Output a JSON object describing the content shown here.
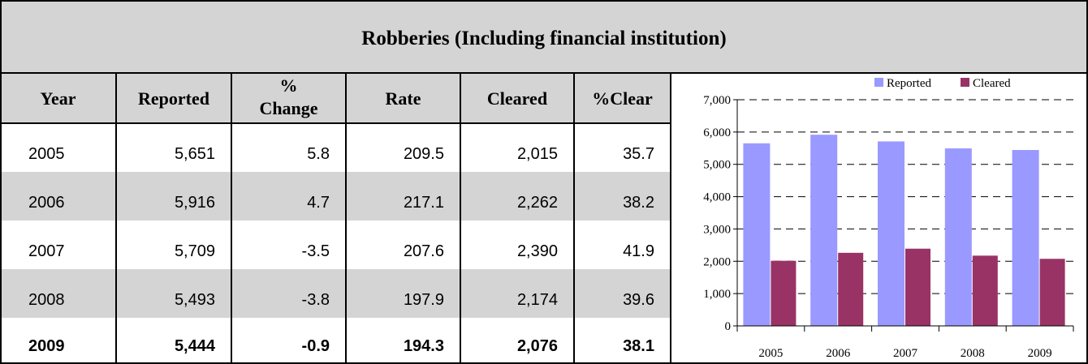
{
  "table": {
    "title": "Robberies (Including financial institution)",
    "header": [
      "Year",
      "Reported",
      [
        "%",
        "Change"
      ],
      "Rate",
      "Cleared",
      "%Clear"
    ],
    "rows": [
      [
        "2005",
        "5,651",
        "5.8",
        "209.5",
        "2,015",
        "35.7"
      ],
      [
        "2006",
        "5,916",
        "4.7",
        "217.1",
        "2,262",
        "38.2"
      ],
      [
        "2007",
        "5,709",
        "-3.5",
        "207.6",
        "2,390",
        "41.9"
      ],
      [
        "2008",
        "5,493",
        "-3.8",
        "197.9",
        "2,174",
        "39.6"
      ],
      [
        "2009",
        "5,444",
        "-0.9",
        "194.3",
        "2,076",
        "38.1"
      ]
    ]
  },
  "chart_data": {
    "type": "bar",
    "categories": [
      "2005",
      "2006",
      "2007",
      "2008",
      "2009"
    ],
    "series": [
      {
        "name": "Reported",
        "color": "#9999ff",
        "values": [
          5651,
          5916,
          5709,
          5493,
          5444
        ]
      },
      {
        "name": "Cleared",
        "color": "#993366",
        "values": [
          2015,
          2262,
          2390,
          2174,
          2076
        ]
      }
    ],
    "ylim": [
      0,
      7000
    ],
    "yticks": [
      0,
      {
        "value": 1000,
        "label": "1,000"
      },
      {
        "value": 2000,
        "label": "2,000"
      },
      {
        "value": 3000,
        "label": "3,000"
      },
      {
        "value": 4000,
        "label": "4,000"
      },
      {
        "value": 5000,
        "label": "5,000"
      },
      {
        "value": 6000,
        "label": "6,000"
      },
      {
        "value": 7000,
        "label": "7,000"
      }
    ],
    "grid": true,
    "legend": "top-right"
  }
}
